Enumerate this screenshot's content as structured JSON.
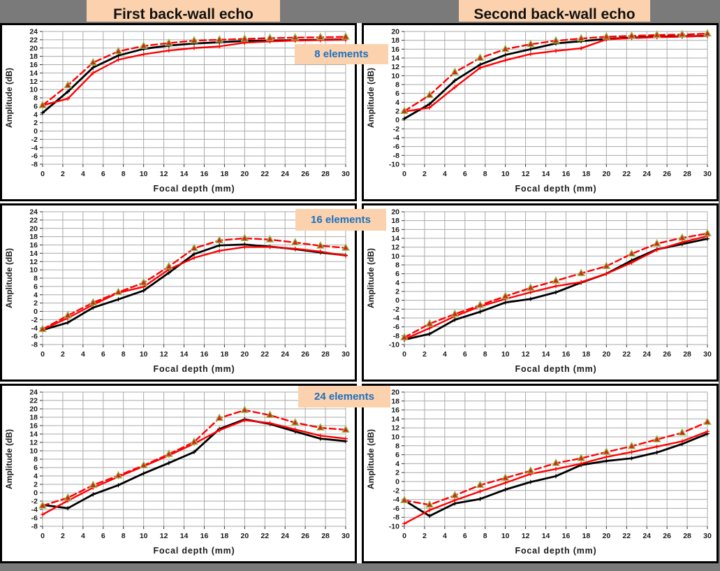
{
  "headers": {
    "col1": "First back-wall echo",
    "col2": "Second back-wall echo"
  },
  "badges": [
    "8 elements",
    "16 elements",
    "24 elements"
  ],
  "colors": {
    "page_bg": "#7a7a7a",
    "header_bg": "#fbd2ad",
    "header_text": "#111111",
    "badge_bg": "#fbd2ad",
    "badge_text": "#1d6fc1",
    "grid": "#aaaaaa",
    "tick_text": "#1a1a1a",
    "tick_mark": "#333333",
    "series_black": "#000000",
    "series_red": "#ff0000",
    "marker_fill": "#d02818",
    "marker_stroke": "#94c04f"
  },
  "chart_data": [
    {
      "id": "first-8",
      "type": "line",
      "column": "First back-wall echo",
      "badge": "8 elements",
      "xlabel": "Focal depth (mm)",
      "ylabel": "Amplitude (dB)",
      "xlim": [
        0,
        30
      ],
      "xtick": 2,
      "ylim": [
        -8,
        24
      ],
      "ytick": 2,
      "grid": true,
      "legend": "none",
      "x": [
        0,
        2.5,
        5,
        7.5,
        10,
        12.5,
        15,
        17.5,
        20,
        22.5,
        25,
        27.5,
        30
      ],
      "series": [
        {
          "name": "black solid",
          "style": "black-solid",
          "values": [
            4.4,
            9.5,
            15.3,
            18.2,
            19.8,
            20.6,
            21.1,
            21.4,
            21.7,
            21.8,
            21.9,
            22.0,
            22.1
          ]
        },
        {
          "name": "red solid",
          "style": "red-solid",
          "values": [
            6.2,
            7.8,
            14.0,
            17.2,
            18.5,
            19.4,
            20.0,
            20.4,
            21.3,
            21.6,
            21.8,
            21.9,
            22.0
          ]
        },
        {
          "name": "red dashed with triangles",
          "style": "red-dashed-triangle",
          "values": [
            6.2,
            11.0,
            16.5,
            19.2,
            20.5,
            21.2,
            21.8,
            22.0,
            22.2,
            22.4,
            22.5,
            22.6,
            22.7
          ]
        }
      ]
    },
    {
      "id": "second-8",
      "type": "line",
      "column": "Second back-wall echo",
      "badge": "8 elements",
      "xlabel": "Focal depth (mm)",
      "ylabel": "Amplitude (dB)",
      "xlim": [
        0,
        30
      ],
      "xtick": 2,
      "ylim": [
        -10,
        20
      ],
      "ytick": 2,
      "grid": true,
      "legend": "none",
      "x": [
        0,
        2.5,
        5,
        7.5,
        10,
        12.5,
        15,
        17.5,
        20,
        22.5,
        25,
        27.5,
        30
      ],
      "series": [
        {
          "name": "black solid",
          "style": "black-solid",
          "values": [
            0.3,
            3.6,
            8.9,
            12.5,
            14.7,
            16.0,
            17.3,
            17.8,
            18.3,
            18.6,
            18.8,
            18.9,
            19.0
          ]
        },
        {
          "name": "red solid",
          "style": "red-solid",
          "values": [
            1.9,
            2.8,
            7.4,
            11.8,
            13.5,
            14.9,
            15.6,
            16.2,
            18.2,
            18.5,
            18.7,
            18.8,
            19.0
          ]
        },
        {
          "name": "red dashed with triangles",
          "style": "red-dashed-triangle",
          "values": [
            2.0,
            5.6,
            10.8,
            14.0,
            16.0,
            17.1,
            17.9,
            18.4,
            18.8,
            19.0,
            19.2,
            19.3,
            19.5
          ]
        }
      ]
    },
    {
      "id": "first-16",
      "type": "line",
      "column": "First back-wall echo",
      "badge": "16 elements",
      "xlabel": "Focal depth (mm)",
      "ylabel": "Amplitude (dB)",
      "xlim": [
        0,
        30
      ],
      "xtick": 2,
      "ylim": [
        -8,
        24
      ],
      "ytick": 2,
      "grid": true,
      "legend": "none",
      "x": [
        0,
        2.5,
        5,
        7.5,
        10,
        12.5,
        15,
        17.5,
        20,
        22.5,
        25,
        27.5,
        30
      ],
      "series": [
        {
          "name": "black solid",
          "style": "black-solid",
          "values": [
            -4.5,
            -2.7,
            0.9,
            2.9,
            5.0,
            9.3,
            13.8,
            15.9,
            16.1,
            15.6,
            15.0,
            14.2,
            13.5
          ]
        },
        {
          "name": "red solid",
          "style": "red-solid",
          "values": [
            -4.4,
            -1.6,
            1.6,
            4.5,
            5.9,
            10.1,
            12.9,
            14.6,
            15.5,
            15.5,
            15.1,
            14.4,
            13.4
          ]
        },
        {
          "name": "red dashed with triangles",
          "style": "red-dashed-triangle",
          "values": [
            -4.3,
            -1.0,
            2.1,
            4.6,
            6.9,
            10.8,
            15.2,
            17.1,
            17.6,
            17.3,
            16.6,
            15.8,
            15.3
          ]
        }
      ]
    },
    {
      "id": "second-16",
      "type": "line",
      "column": "Second back-wall echo",
      "badge": "16 elements",
      "xlabel": "Focal depth (mm)",
      "ylabel": "Amplitude (dB)",
      "xlim": [
        0,
        30
      ],
      "xtick": 2,
      "ylim": [
        -10,
        20
      ],
      "ytick": 2,
      "grid": true,
      "legend": "none",
      "x": [
        0,
        2.5,
        5,
        7.5,
        10,
        12.5,
        15,
        17.5,
        20,
        22.5,
        25,
        27.5,
        30
      ],
      "series": [
        {
          "name": "black solid",
          "style": "black-solid",
          "values": [
            -8.9,
            -7.6,
            -4.4,
            -2.6,
            -0.5,
            0.3,
            1.8,
            4.0,
            6.0,
            9.0,
            11.5,
            12.7,
            13.9
          ]
        },
        {
          "name": "red solid",
          "style": "red-solid",
          "values": [
            -8.8,
            -6.3,
            -3.6,
            -1.4,
            0.3,
            1.8,
            3.2,
            4.1,
            6.0,
            8.5,
            11.4,
            13.1,
            14.5
          ]
        },
        {
          "name": "red dashed with triangles",
          "style": "red-dashed-triangle",
          "values": [
            -8.4,
            -5.3,
            -3.1,
            -1.1,
            0.9,
            2.8,
            4.4,
            6.1,
            7.7,
            10.5,
            12.8,
            14.1,
            15.1
          ]
        }
      ]
    },
    {
      "id": "first-24",
      "type": "line",
      "column": "First back-wall echo",
      "badge": "24 elements",
      "xlabel": "Focal depth (mm)",
      "ylabel": "Amplitude (dB)",
      "xlim": [
        0,
        30
      ],
      "xtick": 2,
      "ylim": [
        -8,
        24
      ],
      "ytick": 2,
      "grid": true,
      "legend": "none",
      "x": [
        0,
        2.5,
        5,
        7.5,
        10,
        12.5,
        15,
        17.5,
        20,
        22.5,
        25,
        27.5,
        30
      ],
      "series": [
        {
          "name": "black solid",
          "style": "black-solid",
          "values": [
            -2.9,
            -3.7,
            -0.4,
            1.8,
            4.6,
            7.1,
            9.7,
            15.2,
            17.5,
            16.4,
            14.6,
            12.9,
            12.3
          ]
        },
        {
          "name": "red solid",
          "style": "red-solid",
          "values": [
            -5.2,
            -1.9,
            1.2,
            3.8,
            6.3,
            8.9,
            11.7,
            14.9,
            17.3,
            16.6,
            15.1,
            13.6,
            12.9
          ]
        },
        {
          "name": "red dashed with triangles",
          "style": "red-dashed-triangle",
          "values": [
            -3.1,
            -1.2,
            1.8,
            4.1,
            6.5,
            9.2,
            12.1,
            17.8,
            19.7,
            18.5,
            16.7,
            15.5,
            15.0
          ]
        }
      ]
    },
    {
      "id": "second-24",
      "type": "line",
      "column": "Second back-wall echo",
      "badge": "24 elements",
      "xlabel": "Focal depth (mm)",
      "ylabel": "Amplitude (dB)",
      "xlim": [
        0,
        30
      ],
      "xtick": 2,
      "ylim": [
        -10,
        20
      ],
      "ytick": 2,
      "grid": true,
      "legend": "none",
      "x": [
        0,
        2.5,
        5,
        7.5,
        10,
        12.5,
        15,
        17.5,
        20,
        22.5,
        25,
        27.5,
        30
      ],
      "series": [
        {
          "name": "black solid",
          "style": "black-solid",
          "values": [
            -4.2,
            -7.7,
            -4.9,
            -3.9,
            -1.8,
            -0.1,
            1.2,
            3.7,
            4.6,
            5.2,
            6.5,
            8.4,
            10.7
          ]
        },
        {
          "name": "red solid",
          "style": "red-solid",
          "values": [
            -9.4,
            -6.4,
            -4.2,
            -2.2,
            -0.3,
            1.7,
            2.8,
            4.0,
            5.5,
            6.6,
            7.8,
            9.0,
            11.2
          ]
        },
        {
          "name": "red dashed with triangles",
          "style": "red-dashed-triangle",
          "values": [
            -4.2,
            -5.2,
            -3.1,
            -0.8,
            0.8,
            2.4,
            4.1,
            5.2,
            6.6,
            7.9,
            9.4,
            10.9,
            13.3
          ]
        }
      ]
    }
  ]
}
